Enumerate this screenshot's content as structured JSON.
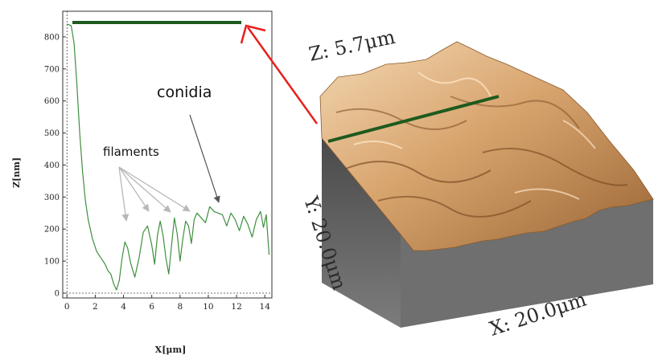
{
  "chart_data": {
    "type": "line",
    "xlabel": "X[μm]",
    "ylabel": "Z[nm]",
    "xlim": [
      -0.3,
      14.5
    ],
    "ylim": [
      -15,
      880
    ],
    "x_ticks": [
      0,
      2,
      4,
      6,
      8,
      10,
      12,
      14
    ],
    "y_ticks": [
      0,
      100,
      200,
      300,
      400,
      500,
      600,
      700,
      800
    ],
    "series": [
      {
        "color": "#3f8f3f",
        "x": [
          0,
          0.3,
          0.5,
          0.7,
          0.9,
          1.1,
          1.3,
          1.5,
          1.8,
          2.1,
          2.4,
          2.7,
          2.9,
          3.1,
          3.3,
          3.5,
          3.7,
          3.9,
          4.1,
          4.3,
          4.5,
          4.8,
          5.1,
          5.4,
          5.7,
          6.0,
          6.2,
          6.4,
          6.6,
          6.8,
          7.0,
          7.2,
          7.4,
          7.6,
          7.8,
          8.0,
          8.2,
          8.4,
          8.6,
          8.8,
          9.0,
          9.2,
          9.5,
          9.8,
          10.1,
          10.4,
          10.7,
          11.0,
          11.3,
          11.6,
          11.9,
          12.2,
          12.5,
          12.8,
          13.1,
          13.4,
          13.7,
          13.9,
          14.1,
          14.3
        ],
        "y": [
          840,
          835,
          780,
          650,
          500,
          380,
          290,
          230,
          170,
          130,
          110,
          90,
          70,
          60,
          30,
          10,
          40,
          110,
          160,
          140,
          95,
          50,
          110,
          190,
          210,
          150,
          90,
          180,
          225,
          180,
          110,
          60,
          150,
          235,
          185,
          100,
          170,
          225,
          210,
          155,
          230,
          250,
          235,
          220,
          270,
          255,
          250,
          245,
          210,
          250,
          230,
          195,
          240,
          215,
          175,
          230,
          255,
          205,
          245,
          120
        ]
      }
    ],
    "annotations": {
      "conidia": "conidia",
      "filaments": "filaments"
    },
    "surface": {
      "z_label": "Z: 5.7μm",
      "y_label": "Y: 20.0μm",
      "x_label": "X: 20.0μm"
    },
    "colors": {
      "profile_line": "#3f8f3f",
      "marker_line": "#1e5a1e",
      "pointer_arrow": "#e8201c",
      "filament_arrows": "#b8b8b8",
      "conidia_arrow": "#555555",
      "surface_light": "#e9c59a",
      "surface_dark": "#7a4a22",
      "block_side": "#6d6d6d"
    }
  }
}
